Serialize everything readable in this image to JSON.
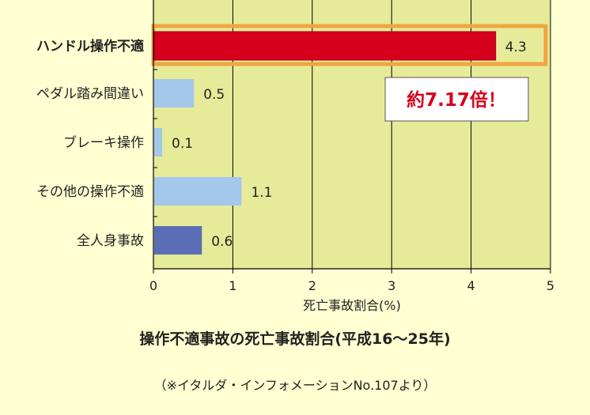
{
  "chart_data": {
    "type": "bar",
    "orientation": "horizontal",
    "title": "操作不適事故の死亡事故割合(平成16〜25年)",
    "xlabel": "死亡事故割合(%)",
    "ylabel": "",
    "xlim": [
      0,
      5
    ],
    "xticks": [
      "0",
      "1",
      "2",
      "3",
      "4",
      "5"
    ],
    "grid": true,
    "categories": [
      "ハンドル操作不適",
      "ペダル踏み間違い",
      "ブレーキ操作",
      "その他の操作不適",
      "全人身事故"
    ],
    "values": [
      4.3,
      0.5,
      0.1,
      1.1,
      0.6
    ],
    "value_labels": [
      "4.3",
      "0.5",
      "0.1",
      "1.1",
      "0.6"
    ],
    "highlighted_category": "ハンドル操作不適",
    "annotation": "約7.17倍！",
    "colors": {
      "background": "#ffffd2",
      "plot_background": "#e6eb9a",
      "highlight_bar": "#d6001c",
      "highlight_frame": "#f0a540",
      "bar_light": "#a3c8ec",
      "bar_dark": "#5a6db5",
      "annotation_text": "#d6001c"
    }
  },
  "source_note": "（※イタルダ・インフォメーションNo.107より）"
}
